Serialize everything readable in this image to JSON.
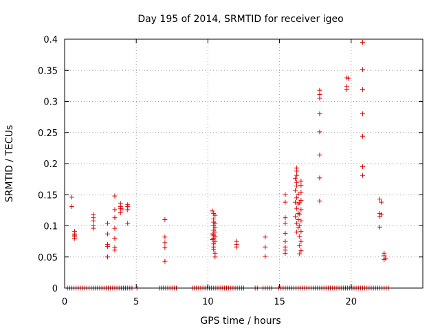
{
  "chart_data": {
    "type": "scatter",
    "title": "Day 195 of 2014, SRMTID for receiver igeo",
    "xlabel": "GPS time / hours",
    "ylabel": "SRMTID / TECUs",
    "xlim": [
      0,
      25
    ],
    "ylim": [
      0,
      0.4
    ],
    "x_ticks": [
      0,
      5,
      10,
      15,
      20
    ],
    "x_tick_labels": [
      "0",
      "5",
      "10",
      "15",
      "20"
    ],
    "y_ticks": [
      0,
      0.05,
      0.1,
      0.15,
      0.2,
      0.25,
      0.3,
      0.35,
      0.4
    ],
    "y_tick_labels": [
      "0",
      "0.05",
      "0.1",
      "0.15",
      "0.2",
      "0.25",
      "0.3",
      "0.35",
      "0.4"
    ],
    "grid": true,
    "marker": "+",
    "color": "#e00000",
    "series": [
      {
        "name": "SRMTID",
        "points": [
          [
            0.5,
            0.146
          ],
          [
            0.5,
            0.131
          ],
          [
            0.7,
            0.091
          ],
          [
            0.7,
            0.087
          ],
          [
            0.7,
            0.085
          ],
          [
            0.7,
            0.083
          ],
          [
            0.7,
            0.08
          ],
          [
            2.0,
            0.118
          ],
          [
            2.0,
            0.113
          ],
          [
            2.0,
            0.108
          ],
          [
            2.0,
            0.1
          ],
          [
            2.0,
            0.096
          ],
          [
            3.0,
            0.104
          ],
          [
            3.0,
            0.087
          ],
          [
            3.0,
            0.07
          ],
          [
            3.0,
            0.067
          ],
          [
            3.0,
            0.05
          ],
          [
            3.5,
            0.148
          ],
          [
            3.5,
            0.126
          ],
          [
            3.5,
            0.113
          ],
          [
            3.5,
            0.096
          ],
          [
            3.5,
            0.08
          ],
          [
            3.5,
            0.065
          ],
          [
            3.5,
            0.061
          ],
          [
            3.9,
            0.136
          ],
          [
            3.9,
            0.131
          ],
          [
            3.9,
            0.128
          ],
          [
            4.0,
            0.127
          ],
          [
            3.9,
            0.121
          ],
          [
            4.4,
            0.134
          ],
          [
            4.4,
            0.131
          ],
          [
            4.4,
            0.126
          ],
          [
            4.4,
            0.104
          ],
          [
            7.0,
            0.11
          ],
          [
            7.0,
            0.082
          ],
          [
            7.0,
            0.073
          ],
          [
            7.0,
            0.065
          ],
          [
            7.0,
            0.043
          ],
          [
            10.3,
            0.124
          ],
          [
            10.4,
            0.12
          ],
          [
            10.5,
            0.117
          ],
          [
            10.4,
            0.111
          ],
          [
            10.4,
            0.106
          ],
          [
            10.5,
            0.104
          ],
          [
            10.4,
            0.1
          ],
          [
            10.5,
            0.097
          ],
          [
            10.4,
            0.093
          ],
          [
            10.5,
            0.09
          ],
          [
            10.3,
            0.087
          ],
          [
            10.4,
            0.085
          ],
          [
            10.5,
            0.083
          ],
          [
            10.4,
            0.08
          ],
          [
            10.3,
            0.078
          ],
          [
            10.5,
            0.075
          ],
          [
            10.4,
            0.071
          ],
          [
            10.4,
            0.066
          ],
          [
            10.4,
            0.062
          ],
          [
            10.5,
            0.056
          ],
          [
            10.5,
            0.05
          ],
          [
            12.0,
            0.075
          ],
          [
            12.0,
            0.07
          ],
          [
            12.0,
            0.066
          ],
          [
            14.0,
            0.082
          ],
          [
            14.0,
            0.066
          ],
          [
            14.0,
            0.051
          ],
          [
            15.4,
            0.15
          ],
          [
            15.4,
            0.138
          ],
          [
            15.4,
            0.113
          ],
          [
            15.4,
            0.104
          ],
          [
            15.4,
            0.088
          ],
          [
            15.4,
            0.075
          ],
          [
            15.4,
            0.066
          ],
          [
            15.4,
            0.061
          ],
          [
            15.4,
            0.056
          ],
          [
            16.2,
            0.193
          ],
          [
            16.2,
            0.188
          ],
          [
            16.2,
            0.181
          ],
          [
            16.1,
            0.176
          ],
          [
            16.2,
            0.17
          ],
          [
            16.2,
            0.164
          ],
          [
            16.1,
            0.157
          ],
          [
            16.3,
            0.151
          ],
          [
            16.2,
            0.145
          ],
          [
            16.1,
            0.138
          ],
          [
            16.3,
            0.135
          ],
          [
            16.2,
            0.128
          ],
          [
            16.3,
            0.12
          ],
          [
            16.1,
            0.115
          ],
          [
            16.3,
            0.11
          ],
          [
            16.2,
            0.104
          ],
          [
            16.3,
            0.097
          ],
          [
            16.2,
            0.09
          ],
          [
            16.5,
            0.172
          ],
          [
            16.5,
            0.165
          ],
          [
            16.5,
            0.154
          ],
          [
            16.5,
            0.141
          ],
          [
            16.4,
            0.137
          ],
          [
            16.5,
            0.126
          ],
          [
            16.4,
            0.119
          ],
          [
            16.5,
            0.108
          ],
          [
            16.4,
            0.1
          ],
          [
            16.5,
            0.091
          ],
          [
            16.4,
            0.083
          ],
          [
            16.5,
            0.075
          ],
          [
            16.4,
            0.068
          ],
          [
            16.5,
            0.06
          ],
          [
            16.4,
            0.055
          ],
          [
            17.8,
            0.318
          ],
          [
            17.8,
            0.311
          ],
          [
            17.8,
            0.305
          ],
          [
            17.8,
            0.28
          ],
          [
            17.8,
            0.251
          ],
          [
            17.8,
            0.214
          ],
          [
            17.8,
            0.177
          ],
          [
            17.8,
            0.14
          ],
          [
            19.7,
            0.338
          ],
          [
            19.8,
            0.337
          ],
          [
            19.7,
            0.324
          ],
          [
            19.7,
            0.319
          ],
          [
            20.8,
            0.395
          ],
          [
            20.8,
            0.351
          ],
          [
            20.8,
            0.319
          ],
          [
            20.8,
            0.28
          ],
          [
            20.8,
            0.244
          ],
          [
            20.8,
            0.195
          ],
          [
            20.8,
            0.181
          ],
          [
            22.0,
            0.143
          ],
          [
            22.1,
            0.138
          ],
          [
            22.0,
            0.12
          ],
          [
            22.1,
            0.118
          ],
          [
            22.0,
            0.115
          ],
          [
            22.0,
            0.098
          ],
          [
            22.3,
            0.056
          ],
          [
            22.3,
            0.052
          ],
          [
            22.4,
            0.048
          ],
          [
            22.3,
            0.046
          ]
        ],
        "zero_x": [
          0.2,
          0.35,
          0.5,
          0.65,
          0.8,
          0.95,
          1.1,
          1.25,
          1.4,
          1.55,
          1.7,
          1.85,
          2.0,
          2.15,
          2.3,
          2.45,
          2.6,
          2.75,
          2.9,
          3.05,
          3.2,
          3.35,
          3.5,
          3.65,
          3.8,
          3.95,
          4.1,
          4.25,
          4.4,
          4.55,
          4.7,
          5.05,
          6.6,
          6.75,
          6.9,
          7.05,
          7.2,
          7.35,
          7.5,
          7.65,
          7.8,
          8.9,
          9.05,
          9.2,
          9.35,
          9.5,
          9.65,
          9.8,
          9.95,
          10.1,
          10.25,
          10.4,
          10.55,
          10.7,
          10.85,
          11.0,
          11.15,
          11.3,
          11.45,
          11.6,
          11.75,
          11.9,
          12.05,
          12.2,
          12.35,
          12.5,
          13.3,
          13.45,
          13.85,
          14.0,
          14.15,
          14.3,
          14.45,
          14.95,
          15.1,
          15.25,
          15.4,
          15.55,
          15.7,
          15.85,
          16.0,
          16.15,
          16.3,
          16.45,
          16.6,
          16.75,
          16.9,
          17.05,
          17.2,
          17.35,
          17.5,
          17.65,
          17.8,
          17.95,
          18.1,
          18.25,
          18.4,
          18.55,
          18.7,
          18.85,
          19.0,
          19.15,
          19.3,
          19.45,
          19.6,
          19.75,
          19.9,
          20.05,
          20.2,
          20.35,
          20.5,
          20.65,
          20.8,
          20.95,
          21.1,
          21.25,
          21.4,
          21.55,
          21.7,
          21.85,
          22.0,
          22.15,
          22.3,
          22.45,
          22.6
        ]
      }
    ]
  }
}
